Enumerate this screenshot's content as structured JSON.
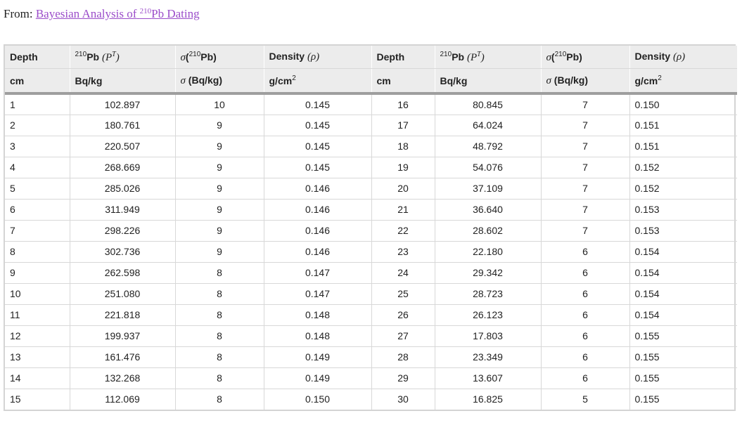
{
  "from_label": "From:",
  "link_text_pre": "Bayesian Analysis of",
  "link_sup": "210",
  "link_text_post": "Pb Dating",
  "headers": {
    "depth": "Depth",
    "pb_sup": "210",
    "pb_label": "Pb",
    "pb_math": "(P",
    "pb_math_sup": "T",
    "pb_math_close": ")",
    "sigma": "σ",
    "sigma_open": "(",
    "sigma_sup": "210",
    "sigma_label": "Pb)",
    "density": "Density",
    "density_math": "(ρ)",
    "unit_cm": "cm",
    "unit_bqkg": "Bq/kg",
    "unit_sigma": "σ",
    "unit_sigma_bq": "(Bq/kg)",
    "unit_density": "g/cm",
    "unit_density_sup": "2"
  },
  "rows": [
    [
      "1",
      "102.897",
      "10",
      "0.145",
      "16",
      "80.845",
      "7",
      "0.150"
    ],
    [
      "2",
      "180.761",
      "9",
      "0.145",
      "17",
      "64.024",
      "7",
      "0.151"
    ],
    [
      "3",
      "220.507",
      "9",
      "0.145",
      "18",
      "48.792",
      "7",
      "0.151"
    ],
    [
      "4",
      "268.669",
      "9",
      "0.145",
      "19",
      "54.076",
      "7",
      "0.152"
    ],
    [
      "5",
      "285.026",
      "9",
      "0.146",
      "20",
      "37.109",
      "7",
      "0.152"
    ],
    [
      "6",
      "311.949",
      "9",
      "0.146",
      "21",
      "36.640",
      "7",
      "0.153"
    ],
    [
      "7",
      "298.226",
      "9",
      "0.146",
      "22",
      "28.602",
      "7",
      "0.153"
    ],
    [
      "8",
      "302.736",
      "9",
      "0.146",
      "23",
      "22.180",
      "6",
      "0.154"
    ],
    [
      "9",
      "262.598",
      "8",
      "0.147",
      "24",
      "29.342",
      "6",
      "0.154"
    ],
    [
      "10",
      "251.080",
      "8",
      "0.147",
      "25",
      "28.723",
      "6",
      "0.154"
    ],
    [
      "11",
      "221.818",
      "8",
      "0.148",
      "26",
      "26.123",
      "6",
      "0.154"
    ],
    [
      "12",
      "199.937",
      "8",
      "0.148",
      "27",
      "17.803",
      "6",
      "0.155"
    ],
    [
      "13",
      "161.476",
      "8",
      "0.149",
      "28",
      "23.349",
      "6",
      "0.155"
    ],
    [
      "14",
      "132.268",
      "8",
      "0.149",
      "29",
      "13.607",
      "6",
      "0.155"
    ],
    [
      "15",
      "112.069",
      "8",
      "0.150",
      "30",
      "16.825",
      "5",
      "0.155"
    ]
  ]
}
